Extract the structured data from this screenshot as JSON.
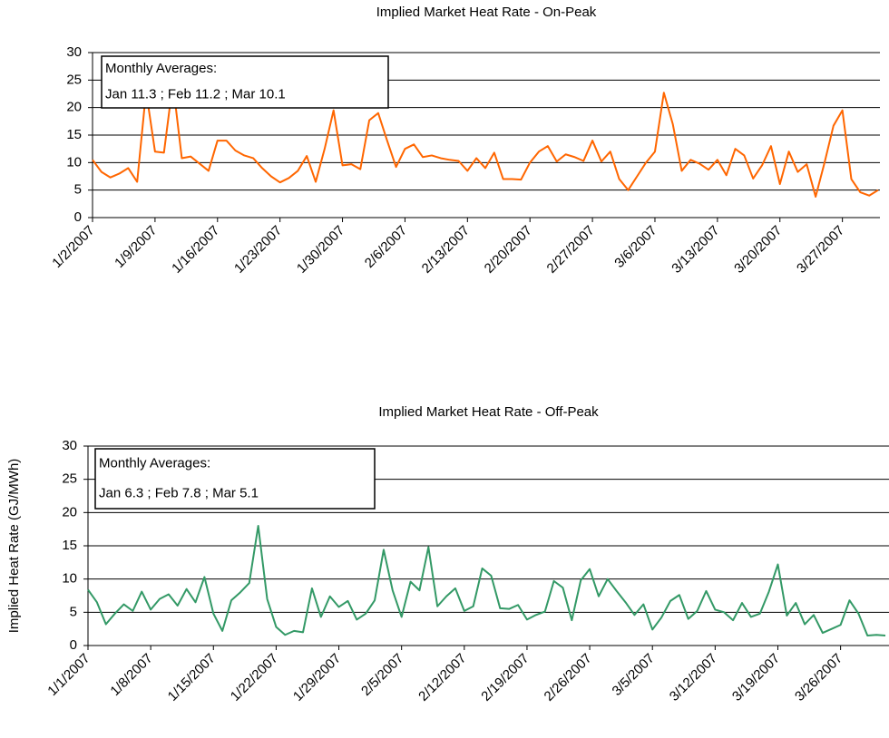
{
  "chart_data": [
    {
      "type": "line",
      "title": "Implied Market Heat Rate - On-Peak",
      "color": "#ff6600",
      "annotation": [
        "Monthly Averages:",
        "Jan 11.3 ; Feb 11.2 ; Mar 10.1"
      ],
      "categories": [
        "1/2/2007",
        null,
        null,
        null,
        null,
        null,
        null,
        "1/9/2007",
        null,
        null,
        null,
        null,
        null,
        null,
        "1/16/2007",
        null,
        null,
        null,
        null,
        null,
        null,
        "1/23/2007",
        null,
        null,
        null,
        null,
        null,
        null,
        "1/30/2007",
        null,
        null,
        null,
        null,
        null,
        null,
        "2/6/2007",
        null,
        null,
        null,
        null,
        null,
        null,
        "2/13/2007",
        null,
        null,
        null,
        null,
        null,
        null,
        "2/20/2007",
        null,
        null,
        null,
        null,
        null,
        null,
        "2/27/2007",
        null,
        null,
        null,
        null,
        null,
        null,
        "3/6/2007",
        null,
        null,
        null,
        null,
        null,
        null,
        "3/13/2007",
        null,
        null,
        null,
        null,
        null,
        null,
        "3/20/2007",
        null,
        null,
        null,
        null,
        null,
        null,
        "3/27/2007",
        null,
        null,
        null,
        null
      ],
      "values": [
        10.5,
        8.3,
        7.3,
        8.0,
        9.0,
        6.5,
        23.0,
        12.0,
        11.8,
        24.5,
        10.8,
        11.1,
        9.8,
        8.5,
        14.0,
        14.0,
        12.2,
        11.3,
        10.8,
        9.0,
        7.5,
        6.4,
        7.2,
        8.5,
        11.2,
        6.5,
        12.5,
        19.5,
        9.5,
        9.7,
        8.8,
        17.7,
        19.0,
        14.0,
        9.2,
        12.5,
        13.3,
        11.0,
        11.3,
        10.8,
        10.5,
        10.3,
        8.5,
        10.8,
        9.0,
        11.8,
        7.0,
        7.0,
        6.9,
        10.0,
        12.0,
        13.0,
        10.2,
        11.5,
        11.0,
        10.3,
        14.0,
        10.2,
        12.0,
        7.0,
        5.0,
        7.5,
        10.0,
        12.0,
        22.7,
        17.0,
        8.5,
        10.5,
        9.8,
        8.7,
        10.5,
        7.7,
        12.5,
        11.3,
        7.1,
        9.5,
        13.0,
        6.1,
        12.0,
        8.3,
        9.7,
        3.8,
        10.0,
        16.7,
        19.5,
        7.0,
        4.6,
        4.0,
        5.0
      ],
      "ylim": [
        0,
        30
      ],
      "yticks": [
        0,
        5,
        10,
        15,
        20,
        25,
        30
      ],
      "grid": true
    },
    {
      "type": "line",
      "title": "Implied Market Heat Rate - Off-Peak",
      "color": "#339966",
      "ylabel": "Implied Heat Rate (GJ/MWh)",
      "annotation": [
        "Monthly Averages:",
        "Jan 6.3 ; Feb 7.8 ; Mar 5.1"
      ],
      "categories": [
        "1/1/2007",
        null,
        null,
        null,
        null,
        null,
        null,
        "1/8/2007",
        null,
        null,
        null,
        null,
        null,
        null,
        "1/15/2007",
        null,
        null,
        null,
        null,
        null,
        null,
        "1/22/2007",
        null,
        null,
        null,
        null,
        null,
        null,
        "1/29/2007",
        null,
        null,
        null,
        null,
        null,
        null,
        "2/5/2007",
        null,
        null,
        null,
        null,
        null,
        null,
        "2/12/2007",
        null,
        null,
        null,
        null,
        null,
        null,
        "2/19/2007",
        null,
        null,
        null,
        null,
        null,
        null,
        "2/26/2007",
        null,
        null,
        null,
        null,
        null,
        null,
        "3/5/2007",
        null,
        null,
        null,
        null,
        null,
        null,
        "3/12/2007",
        null,
        null,
        null,
        null,
        null,
        null,
        "3/19/2007",
        null,
        null,
        null,
        null,
        null,
        null,
        "3/26/2007",
        null,
        null,
        null,
        null,
        null
      ],
      "values": [
        8.4,
        6.5,
        3.2,
        4.8,
        6.2,
        5.2,
        8.1,
        5.4,
        7.0,
        7.7,
        6.0,
        8.5,
        6.5,
        10.3,
        4.8,
        2.2,
        6.8,
        8.0,
        9.4,
        18.0,
        7.0,
        2.8,
        1.6,
        2.2,
        2.0,
        8.6,
        4.3,
        7.4,
        5.8,
        6.7,
        3.9,
        4.8,
        6.8,
        14.4,
        8.3,
        4.3,
        9.6,
        8.3,
        14.8,
        5.9,
        7.4,
        8.6,
        5.2,
        5.9,
        11.6,
        10.5,
        5.6,
        5.5,
        6.1,
        3.9,
        4.6,
        5.1,
        9.7,
        8.7,
        3.8,
        9.8,
        11.5,
        7.4,
        10.0,
        8.2,
        6.5,
        4.6,
        6.2,
        2.4,
        4.2,
        6.7,
        7.6,
        4.0,
        5.2,
        8.2,
        5.4,
        5.0,
        3.8,
        6.4,
        4.3,
        4.8,
        8.1,
        12.2,
        4.5,
        6.4,
        3.2,
        4.6,
        1.9,
        2.5,
        3.1,
        6.8,
        4.8,
        1.5,
        1.6,
        1.5
      ],
      "ylim": [
        0,
        30
      ],
      "yticks": [
        0,
        5,
        10,
        15,
        20,
        25,
        30
      ],
      "grid": true
    }
  ]
}
